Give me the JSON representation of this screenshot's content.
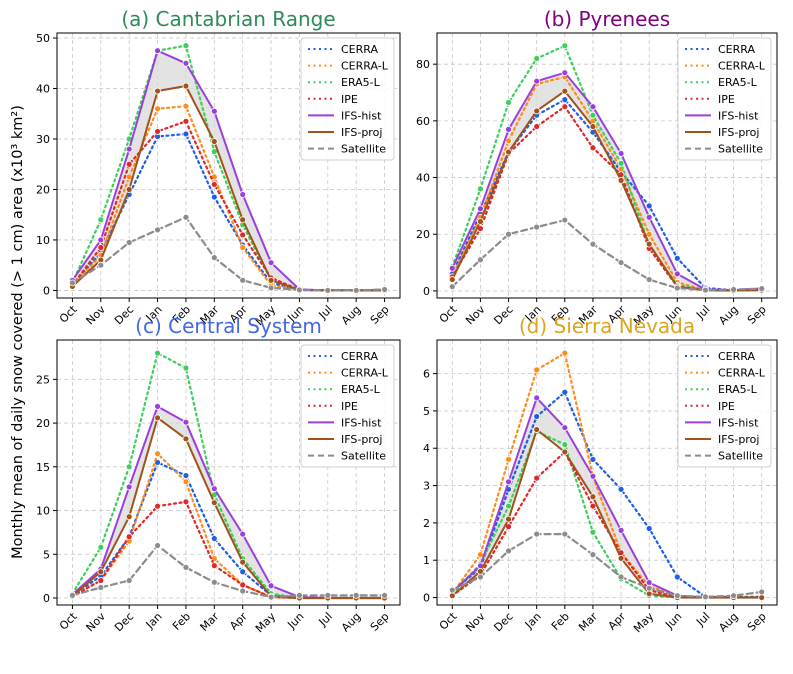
{
  "figure": {
    "ylabel": "Monthly mean of daily snow covered (> 1 cm) area (x10³ km²)"
  },
  "chart_data": [
    {
      "type": "line",
      "title": "(a) Cantabrian Range",
      "title_color": "#2e8b57",
      "categories": [
        "Oct",
        "Nov",
        "Dec",
        "Jan",
        "Feb",
        "Mar",
        "Apr",
        "May",
        "Jun",
        "Jul",
        "Aug",
        "Sep"
      ],
      "ylim": [
        -1.5,
        51
      ],
      "yticks": [
        0,
        10,
        20,
        30,
        40,
        50
      ],
      "series": [
        {
          "name": "CERRA",
          "color": "#1f5fe6",
          "style": "dotted",
          "values": [
            1.0,
            7.5,
            19.0,
            30.5,
            31.0,
            18.5,
            9.0,
            1.5,
            0.1,
            0.0,
            0.0,
            0.0
          ]
        },
        {
          "name": "CERRA-L",
          "color": "#ff8c1a",
          "style": "dotted",
          "values": [
            0.8,
            7.0,
            22.5,
            36.0,
            36.5,
            22.5,
            8.5,
            1.0,
            0.1,
            0.0,
            0.0,
            0.0
          ]
        },
        {
          "name": "ERA5-L",
          "color": "#3ecf5a",
          "style": "dotted",
          "values": [
            1.5,
            14.0,
            30.0,
            47.5,
            48.5,
            27.5,
            13.0,
            2.0,
            0.1,
            0.0,
            0.0,
            0.0
          ]
        },
        {
          "name": "IPE",
          "color": "#e02828",
          "style": "dotted",
          "values": [
            1.0,
            8.5,
            25.0,
            31.5,
            33.5,
            21.0,
            11.0,
            2.5,
            0.1,
            0.0,
            0.0,
            0.0
          ]
        },
        {
          "name": "IFS-hist",
          "color": "#9b3fdc",
          "style": "solid",
          "values": [
            2.0,
            10.0,
            28.0,
            47.5,
            45.0,
            35.5,
            19.0,
            5.5,
            0.2,
            0.0,
            0.0,
            0.0
          ]
        },
        {
          "name": "IFS-proj",
          "color": "#a0521a",
          "style": "solid",
          "values": [
            0.8,
            6.0,
            20.0,
            39.5,
            40.5,
            29.5,
            14.0,
            2.0,
            0.1,
            0.0,
            0.0,
            0.0
          ]
        },
        {
          "name": "Satellite",
          "color": "#8c8c8c",
          "style": "dashed",
          "values": [
            1.5,
            5.0,
            9.5,
            12.0,
            14.5,
            6.5,
            2.0,
            0.5,
            0.1,
            0.0,
            0.0,
            0.2
          ]
        }
      ]
    },
    {
      "type": "line",
      "title": "(b) Pyrenees",
      "title_color": "#800080",
      "categories": [
        "Oct",
        "Nov",
        "Dec",
        "Jan",
        "Feb",
        "Mar",
        "Apr",
        "May",
        "Jun",
        "Jul",
        "Aug",
        "Sep"
      ],
      "ylim": [
        -2.5,
        91
      ],
      "yticks": [
        0,
        20,
        40,
        60,
        80
      ],
      "series": [
        {
          "name": "CERRA",
          "color": "#1f5fe6",
          "style": "dotted",
          "values": [
            6.0,
            27.0,
            49.0,
            62.0,
            67.5,
            56.0,
            42.0,
            30.0,
            11.5,
            1.0,
            0.3,
            0.8
          ]
        },
        {
          "name": "CERRA-L",
          "color": "#ff8c1a",
          "style": "dotted",
          "values": [
            5.0,
            26.0,
            53.0,
            73.0,
            75.5,
            60.0,
            43.0,
            20.0,
            3.0,
            0.3,
            0.2,
            0.5
          ]
        },
        {
          "name": "ERA5-L",
          "color": "#3ecf5a",
          "style": "dotted",
          "values": [
            8.5,
            36.0,
            66.5,
            82.0,
            86.5,
            62.0,
            45.0,
            16.0,
            2.0,
            0.3,
            0.2,
            0.5
          ]
        },
        {
          "name": "IPE",
          "color": "#e02828",
          "style": "dotted",
          "values": [
            5.0,
            22.0,
            48.5,
            58.0,
            65.0,
            50.5,
            41.0,
            15.0,
            1.5,
            0.3,
            0.2,
            0.3
          ]
        },
        {
          "name": "IFS-hist",
          "color": "#9b3fdc",
          "style": "solid",
          "values": [
            8.0,
            29.0,
            57.0,
            74.0,
            77.0,
            65.0,
            48.5,
            26.0,
            6.0,
            0.5,
            0.3,
            0.8
          ]
        },
        {
          "name": "IFS-proj",
          "color": "#a0521a",
          "style": "solid",
          "values": [
            4.0,
            24.5,
            49.0,
            63.5,
            70.5,
            58.0,
            39.0,
            16.5,
            1.5,
            0.2,
            0.1,
            0.3
          ]
        },
        {
          "name": "Satellite",
          "color": "#8c8c8c",
          "style": "dashed",
          "values": [
            1.5,
            11.0,
            20.0,
            22.5,
            25.0,
            16.5,
            10.0,
            4.0,
            1.0,
            0.3,
            0.5,
            0.8
          ]
        }
      ]
    },
    {
      "type": "line",
      "title": "(c) Central System",
      "title_color": "#4169e1",
      "categories": [
        "Oct",
        "Nov",
        "Dec",
        "Jan",
        "Feb",
        "Mar",
        "Apr",
        "May",
        "Jun",
        "Jul",
        "Aug",
        "Sep"
      ],
      "ylim": [
        -0.8,
        29.5
      ],
      "yticks": [
        0,
        5,
        10,
        15,
        20,
        25
      ],
      "series": [
        {
          "name": "CERRA",
          "color": "#1f5fe6",
          "style": "dotted",
          "values": [
            0.3,
            2.5,
            7.0,
            15.5,
            14.0,
            6.8,
            3.0,
            0.3,
            0.0,
            0.0,
            0.0,
            0.0
          ]
        },
        {
          "name": "CERRA-L",
          "color": "#ff8c1a",
          "style": "dotted",
          "values": [
            0.3,
            2.0,
            6.5,
            16.5,
            13.3,
            4.5,
            1.5,
            0.1,
            0.0,
            0.0,
            0.0,
            0.0
          ]
        },
        {
          "name": "ERA5-L",
          "color": "#3ecf5a",
          "style": "dotted",
          "values": [
            0.5,
            5.8,
            15.0,
            28.0,
            26.3,
            11.8,
            4.5,
            0.5,
            0.0,
            0.0,
            0.0,
            0.0
          ]
        },
        {
          "name": "IPE",
          "color": "#e02828",
          "style": "dotted",
          "values": [
            0.2,
            2.0,
            7.0,
            10.5,
            11.0,
            3.7,
            1.5,
            0.1,
            0.0,
            0.0,
            0.0,
            0.0
          ]
        },
        {
          "name": "IFS-hist",
          "color": "#9b3fdc",
          "style": "solid",
          "values": [
            0.4,
            3.3,
            12.7,
            21.9,
            20.1,
            12.5,
            7.3,
            1.4,
            0.1,
            0.0,
            0.0,
            0.0
          ]
        },
        {
          "name": "IFS-proj",
          "color": "#a0521a",
          "style": "solid",
          "values": [
            0.2,
            3.0,
            9.3,
            20.6,
            18.2,
            10.9,
            4.1,
            0.2,
            0.0,
            0.0,
            0.0,
            0.0
          ]
        },
        {
          "name": "Satellite",
          "color": "#8c8c8c",
          "style": "dashed",
          "values": [
            0.3,
            1.2,
            2.0,
            6.0,
            3.5,
            1.8,
            0.8,
            0.1,
            0.3,
            0.3,
            0.3,
            0.3
          ]
        }
      ]
    },
    {
      "type": "line",
      "title": "(d) Sierra Nevada",
      "title_color": "#daa520",
      "categories": [
        "Oct",
        "Nov",
        "Dec",
        "Jan",
        "Feb",
        "Mar",
        "Apr",
        "May",
        "Jun",
        "Jul",
        "Aug",
        "Sep"
      ],
      "ylim": [
        -0.2,
        6.9
      ],
      "yticks": [
        0,
        1,
        2,
        3,
        4,
        5,
        6
      ],
      "series": [
        {
          "name": "CERRA",
          "color": "#1f5fe6",
          "style": "dotted",
          "values": [
            0.15,
            0.8,
            2.9,
            4.85,
            5.5,
            3.7,
            2.9,
            1.85,
            0.55,
            0.02,
            0.02,
            0.02
          ]
        },
        {
          "name": "CERRA-L",
          "color": "#ff8c1a",
          "style": "dotted",
          "values": [
            0.1,
            1.15,
            3.7,
            6.1,
            6.55,
            3.25,
            1.2,
            0.3,
            0.05,
            0.0,
            0.0,
            0.0
          ]
        },
        {
          "name": "ERA5-L",
          "color": "#3ecf5a",
          "style": "dotted",
          "values": [
            0.1,
            0.9,
            2.45,
            4.45,
            4.1,
            1.75,
            0.5,
            0.05,
            0.0,
            0.0,
            0.0,
            0.0
          ]
        },
        {
          "name": "IPE",
          "color": "#e02828",
          "style": "dotted",
          "values": [
            0.05,
            0.6,
            1.9,
            3.2,
            3.9,
            2.45,
            1.2,
            0.2,
            0.0,
            0.0,
            0.0,
            0.0
          ]
        },
        {
          "name": "IFS-hist",
          "color": "#9b3fdc",
          "style": "solid",
          "values": [
            0.15,
            0.85,
            3.1,
            5.35,
            4.55,
            3.25,
            1.8,
            0.4,
            0.05,
            0.0,
            0.0,
            0.0
          ]
        },
        {
          "name": "IFS-proj",
          "color": "#a0521a",
          "style": "solid",
          "values": [
            0.05,
            0.7,
            2.1,
            4.5,
            3.9,
            2.7,
            1.05,
            0.1,
            0.0,
            0.0,
            0.0,
            0.0
          ]
        },
        {
          "name": "Satellite",
          "color": "#8c8c8c",
          "style": "dashed",
          "values": [
            0.2,
            0.55,
            1.25,
            1.7,
            1.7,
            1.15,
            0.55,
            0.25,
            0.05,
            0.02,
            0.05,
            0.15
          ]
        }
      ]
    }
  ]
}
